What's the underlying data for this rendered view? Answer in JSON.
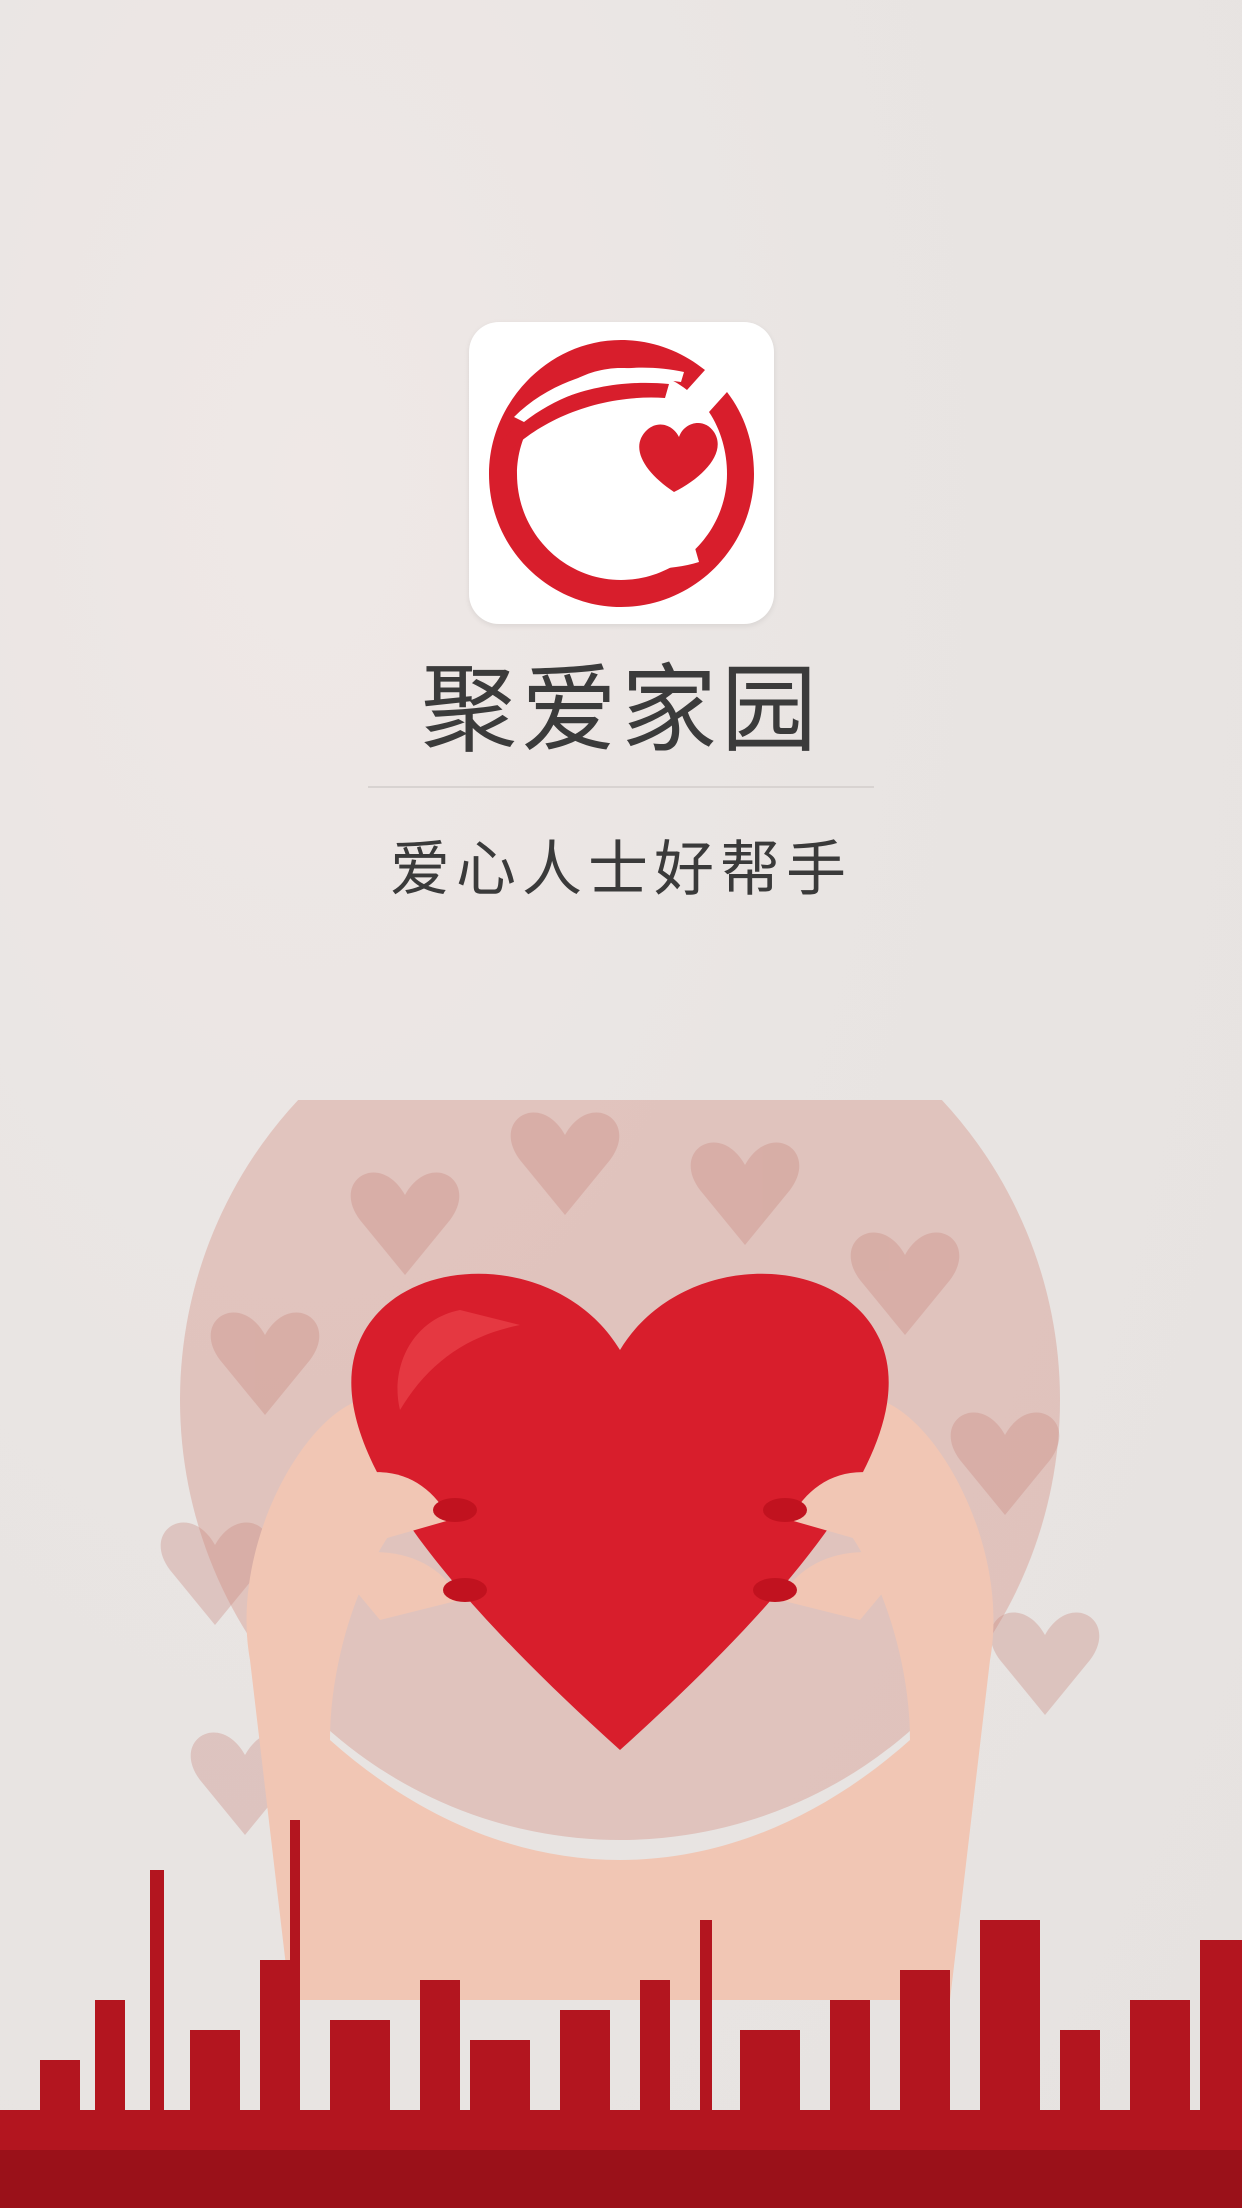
{
  "app": {
    "name": "聚爱家园",
    "tagline": "爱心人士好帮手"
  },
  "colors": {
    "brand_red": "#d81e2c",
    "background": "#e9e5e3",
    "text": "#3b3b3b"
  },
  "icons": {
    "logo": "hands-heart-logo-icon",
    "hero": "hands-holding-heart-illustration"
  }
}
